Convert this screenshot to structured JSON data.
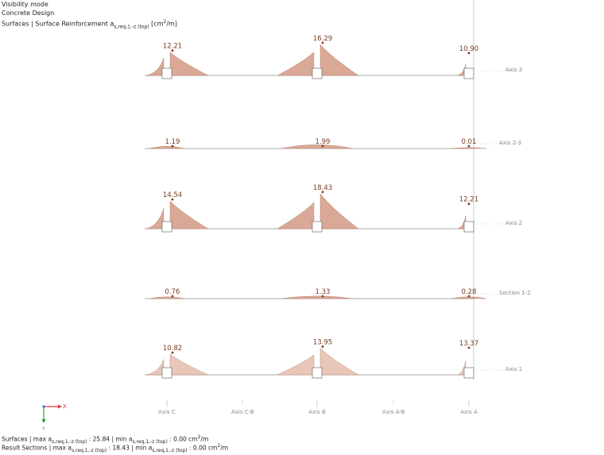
{
  "header": {
    "line1": "Visibility mode",
    "line2": "Concrete Design",
    "line3_prefix": "Surfaces | Surface Reinforcement a",
    "line3_sub": "s,req,1,-z (top)",
    "line3_unit": " [cm",
    "line3_sup": "2",
    "line3_end": "/m]"
  },
  "footer": {
    "surfaces_prefix": "Surfaces | max a",
    "surfaces_sub1": "s,req,1,-z (top)",
    "surfaces_mid": " : 25.84 | min a",
    "surfaces_sub2": "s,req,1,-z (top)",
    "surfaces_end": " : 0.00 cm",
    "surfaces_sup": "2",
    "surfaces_tail": "/m",
    "sections_prefix": "Result Sections | max a",
    "sections_sub1": "s,req,1,-z (top)",
    "sections_mid": " : 18.43 | min a",
    "sections_sub2": "s,req,1,-z (top)",
    "sections_end": " : 0.00 cm",
    "sections_sup": "2",
    "sections_tail": "/m"
  },
  "triad": {
    "x_label": "X",
    "y_label": "Y",
    "x_color": "#e53935",
    "y_color": "#2e9e3a"
  },
  "colors": {
    "fill": "#d9a896",
    "fill_light": "#e8c7b8",
    "edge": "#b07c68",
    "label": "#7a3b22",
    "baseline": "#8c8c8c"
  },
  "chart_data": {
    "type": "area",
    "title": "Surfaces | Surface Reinforcement as,req,1,-z (top) [cm2/m]",
    "x_axis_labels": [
      "Axis C",
      "Axis C-B",
      "Axis B",
      "Axis A-B",
      "Axis A"
    ],
    "series": [
      {
        "name": "Axis 3",
        "peaks": [
          {
            "at": "Axis C",
            "value": 12.21
          },
          {
            "at": "Axis B",
            "value": 16.29
          },
          {
            "at": "Axis A",
            "value": 10.9
          }
        ]
      },
      {
        "name": "Axis  2-3",
        "peaks": [
          {
            "at": "Axis C",
            "value": 1.19
          },
          {
            "at": "Axis B",
            "value": 1.99
          },
          {
            "at": "Axis A",
            "value": 0.01
          }
        ]
      },
      {
        "name": "Axis 2",
        "peaks": [
          {
            "at": "Axis C",
            "value": 14.54
          },
          {
            "at": "Axis B",
            "value": 18.43
          },
          {
            "at": "Axis A",
            "value": 12.21
          }
        ]
      },
      {
        "name": "Section 1-2",
        "peaks": [
          {
            "at": "Axis C",
            "value": 0.76
          },
          {
            "at": "Axis B",
            "value": 1.33
          },
          {
            "at": "Axis A",
            "value": 0.28
          }
        ]
      },
      {
        "name": "Axis 1",
        "peaks": [
          {
            "at": "Axis C",
            "value": 10.82
          },
          {
            "at": "Axis B",
            "value": 13.95
          },
          {
            "at": "Axis A",
            "value": 13.37
          }
        ]
      }
    ]
  }
}
